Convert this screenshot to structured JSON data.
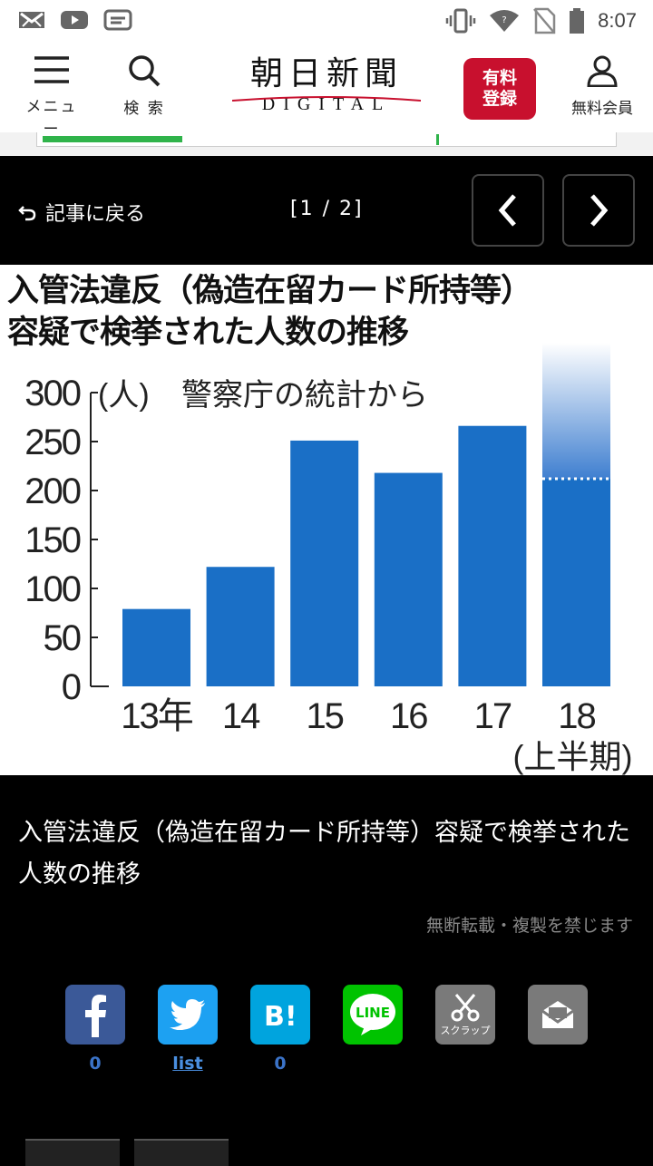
{
  "status_bar": {
    "time": "8:07",
    "icons": [
      "mail-x-icon",
      "youtube-icon",
      "message-icon",
      "vibrate-icon",
      "wifi-icon",
      "no-sim-icon",
      "battery-icon"
    ]
  },
  "header": {
    "menu_label": "メニュー",
    "search_label": "検 索",
    "logo_kanji": "朝日新聞",
    "logo_sub": "DIGITAL",
    "paid_line1": "有料",
    "paid_line2": "登録",
    "member_label": "無料会員",
    "paid_color": "#c8102e"
  },
  "reading_progress": 0.41,
  "viewer": {
    "back_label": "記事に戻る",
    "pager": "[1 / 2]"
  },
  "figure": {
    "title_line1": "入管法違反（偽造在留カード所持等）",
    "title_line2": "容疑で検挙された人数の推移"
  },
  "chart_data": {
    "type": "bar",
    "title": "入管法違反（偽造在留カード所持等）容疑で検挙された人数の推移",
    "unit_label": "(人)",
    "source_note": "警察庁の統計から",
    "categories": [
      "13年",
      "14",
      "15",
      "16",
      "17",
      "18"
    ],
    "category_sublabels": [
      "",
      "",
      "",
      "",
      "",
      "(上半期)"
    ],
    "values": [
      79,
      122,
      251,
      218,
      266,
      212
    ],
    "ylim": [
      0,
      300
    ],
    "yticks": [
      0,
      50,
      100,
      150,
      200,
      250,
      300
    ],
    "bar_color": "#1a6fc6",
    "grid": false,
    "last_bar_projection": true
  },
  "caption": {
    "text": "入管法違反（偽造在留カード所持等）容疑で検挙された人数の推移",
    "copyright": "無断転載・複製を禁じます"
  },
  "share": {
    "facebook_count": "0",
    "twitter_count": "list",
    "hatena_count": "0",
    "line_label": "LINE",
    "scrap_label": "スクラップ",
    "facebook_color": "#3b5998",
    "twitter_color": "#1da1f2",
    "hatena_color": "#00a4de",
    "line_color": "#00c300"
  }
}
